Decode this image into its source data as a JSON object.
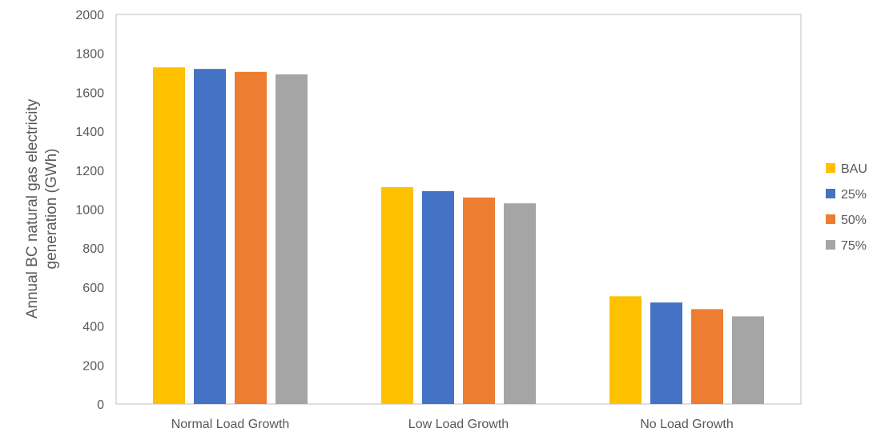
{
  "chart_data": {
    "type": "bar",
    "title": "",
    "xlabel": "",
    "ylabel_lines": [
      "Annual BC natural gas electricity",
      "generation (GWh)"
    ],
    "categories": [
      "Normal Load Growth",
      "Low Load Growth",
      "No Load Growth"
    ],
    "series": [
      {
        "name": "BAU",
        "color": "#FFC000",
        "values": [
          1728,
          1113,
          553
        ]
      },
      {
        "name": "25%",
        "color": "#4472C4",
        "values": [
          1720,
          1093,
          521
        ]
      },
      {
        "name": "50%",
        "color": "#ED7D31",
        "values": [
          1705,
          1060,
          487
        ]
      },
      {
        "name": "75%",
        "color": "#A5A5A5",
        "values": [
          1692,
          1030,
          450
        ]
      }
    ],
    "ylim": [
      0,
      2000
    ],
    "yticks": [
      0,
      200,
      400,
      600,
      800,
      1000,
      1200,
      1400,
      1600,
      1800,
      2000
    ],
    "grid": false,
    "legend": "right"
  }
}
